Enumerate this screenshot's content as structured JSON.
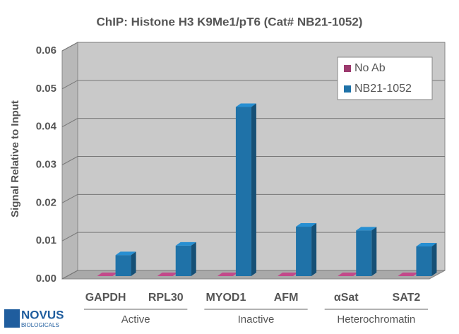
{
  "chart_data": {
    "type": "bar3d",
    "title": "ChIP: Histone H3 K9Me1/pT6 (Cat# NB21-1052)",
    "y_label": "Signal Relative to Input",
    "categories": [
      "GAPDH",
      "RPL30",
      "MYOD1",
      "AFM",
      "αSat",
      "SAT2"
    ],
    "groups": [
      "Active",
      "Inactive",
      "Heterochromatin"
    ],
    "series": [
      {
        "name": "No Ab",
        "color": "#9c3a6e",
        "values": [
          0,
          0,
          0,
          0,
          0,
          0
        ]
      },
      {
        "name": "NB21-1052",
        "color": "#1f72a8",
        "values": [
          0.0055,
          0.008,
          0.0445,
          0.013,
          0.012,
          0.0078
        ]
      }
    ],
    "ylim": [
      0,
      0.06
    ],
    "yticks": [
      {
        "value": 0,
        "label": "0.00"
      },
      0.01,
      0.02,
      0.03,
      0.04,
      0.05,
      0.06
    ],
    "grid": true,
    "legend": "upper right"
  },
  "logo": {
    "name": "NOVUS",
    "sub": "BIOLOGICALS"
  }
}
